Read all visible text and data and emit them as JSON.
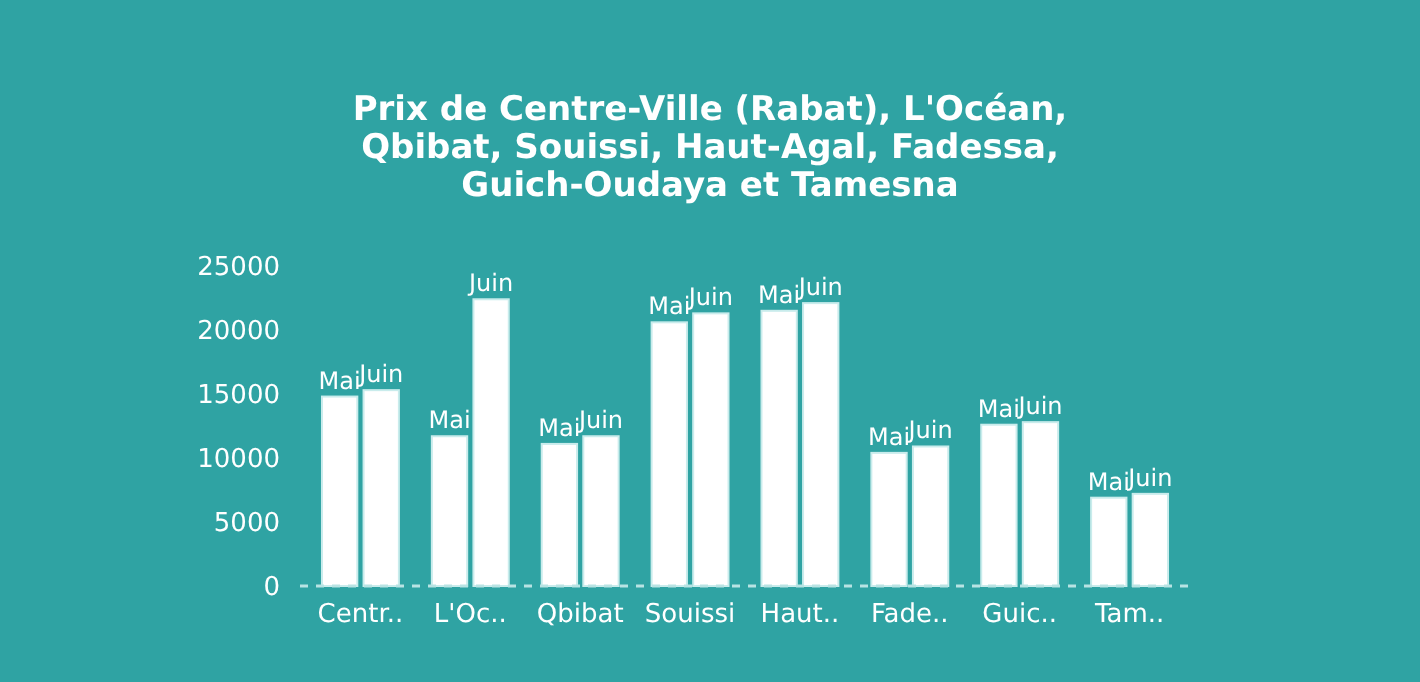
{
  "chart_data": {
    "type": "bar",
    "title": "Prix de Centre-Ville (Rabat), L'Océan, Qbibat, Souissi, Haut-Agal, Fadessa, Guich-Oudaya et Tamesna",
    "categories": [
      "Centr..",
      "L'Oc..",
      "Qbibat",
      "Souissi",
      "Haut..",
      "Fade..",
      "Guic..",
      "Tam.."
    ],
    "series": [
      {
        "name": "Mai",
        "color": "#ffffff",
        "values": [
          14800,
          11700,
          11100,
          20600,
          21500,
          10400,
          12600,
          6900
        ]
      },
      {
        "name": "Juin",
        "color": "#ffffff",
        "values": [
          15300,
          22400,
          11700,
          21300,
          22100,
          10900,
          12800,
          7200
        ]
      }
    ],
    "ylim": [
      0,
      25000
    ],
    "yticks": [
      0,
      5000,
      10000,
      15000,
      20000,
      25000
    ],
    "grid": false,
    "legend": false
  }
}
